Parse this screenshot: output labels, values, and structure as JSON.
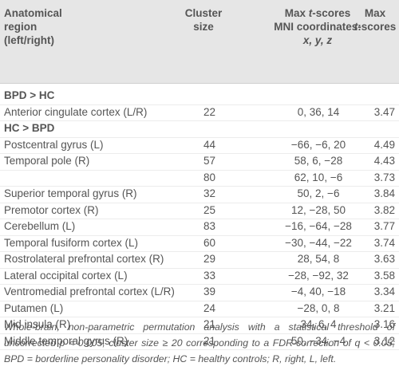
{
  "header": {
    "columns": [
      [
        "Anatomical",
        "region",
        "(left/right)"
      ],
      [
        "Cluster",
        "size"
      ],
      [
        "Max ",
        "t",
        "-scores",
        "MNI coordinates:",
        "x, y, z"
      ],
      [
        "Max",
        "t",
        "-scores"
      ]
    ]
  },
  "sections": [
    {
      "title": "BPD > HC",
      "rows": [
        [
          "Anterior cingulate cortex (L/R)",
          22,
          "0, 36, 14",
          3.47
        ]
      ]
    },
    {
      "title": "HC > BPD",
      "rows": [
        [
          "Postcentral gyrus (L)",
          44,
          "−66, −6, 20",
          4.49
        ],
        [
          "Temporal pole (R)",
          57,
          "58, 6, −28",
          4.43
        ],
        [
          null,
          80,
          "62, 10, −6",
          3.73
        ],
        [
          "Superior temporal gyrus (R)",
          32,
          "50, 2, −6",
          3.84
        ],
        [
          "Premotor cortex (R)",
          25,
          "12, −28, 50",
          3.82
        ],
        [
          "Cerebellum (L)",
          83,
          "−16, −64, −28",
          3.77
        ],
        [
          "Temporal fusiform cortex (L)",
          60,
          "−30, −44, −22",
          3.74
        ],
        [
          "Rostrolateral prefrontal cortex (R)",
          29,
          "28, 54, 8",
          3.63
        ],
        [
          "Lateral occipital cortex (L)",
          33,
          "−28, −92, 32",
          3.58
        ],
        [
          "Ventromedial prefrontal cortex (L/R)",
          39,
          "−4, 40, −18",
          3.34
        ],
        [
          "Putamen (L)",
          24,
          "−28, 0, 8",
          3.21
        ],
        [
          "Mid insula (R)",
          21,
          "34, 6, 4",
          3.16
        ],
        [
          "Middle temporal gyrus (R)",
          21,
          "50, −34, −4",
          3.12
        ]
      ]
    }
  ],
  "footnote": "Whole-brain, non-parametric permutation analysis with a statistical threshold of uncorrected p < 0.005, cluster size ≥ 20 corresponding to a FDR-correction of q < 0.05; BPD = borderline personality disorder; HC = healthy controls; R, right, L, left."
}
